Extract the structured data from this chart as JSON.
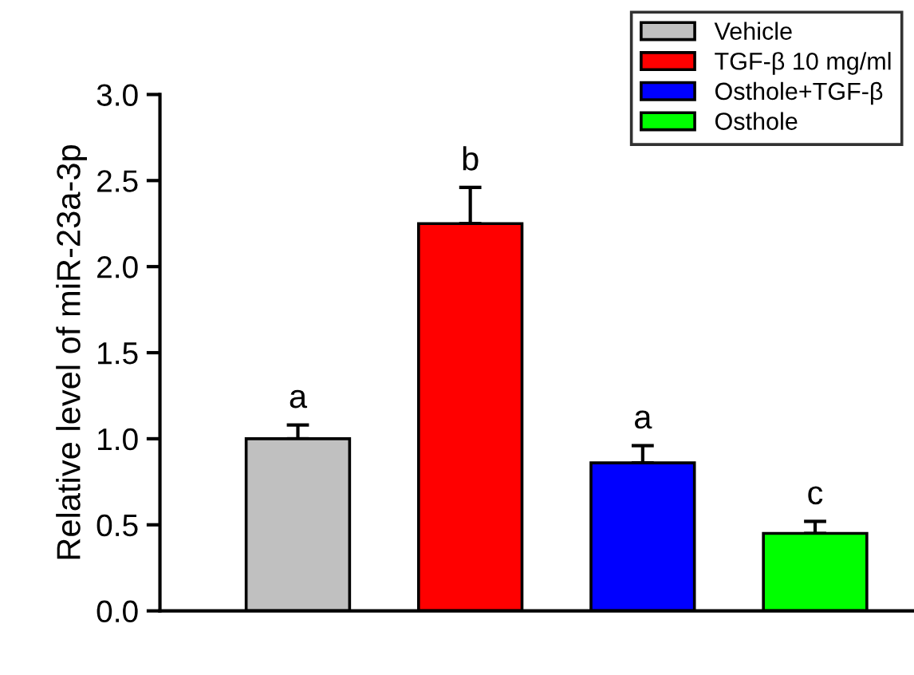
{
  "chart_data": {
    "type": "bar",
    "ylabel": "Relative level of miR-23a-3p",
    "categories": [
      null,
      null,
      null,
      null
    ],
    "series": [
      {
        "name": "Vehicle",
        "color": "#c0c0c0",
        "values": [
          1.0,
          null,
          null,
          null
        ],
        "errors": [
          [
            1.0,
            1.08
          ],
          null,
          null,
          null
        ]
      },
      {
        "name": "TGF-β 10 mg/ml",
        "color": "#ff0000",
        "values": [
          null,
          2.25,
          null,
          null
        ],
        "errors": [
          null,
          [
            2.25,
            2.46
          ],
          null,
          null
        ]
      },
      {
        "name": "Osthole+TGF-β",
        "color": "#0000ff",
        "values": [
          null,
          null,
          0.86,
          null
        ],
        "errors": [
          null,
          null,
          [
            0.86,
            0.96
          ],
          null
        ]
      },
      {
        "name": "Osthole",
        "color": "#00ff00",
        "values": [
          null,
          null,
          null,
          0.45
        ],
        "errors": [
          null,
          null,
          null,
          [
            0.45,
            0.52
          ]
        ]
      }
    ],
    "annotations": [
      "a",
      "b",
      "a",
      "c"
    ],
    "ylim": [
      0,
      3.0
    ],
    "yticks": [
      {
        "value": 0,
        "label": "0.0"
      },
      {
        "value": 0.5,
        "label": "0.5"
      },
      {
        "value": 1.0,
        "label": "1.0"
      },
      {
        "value": 1.5,
        "label": "1.5"
      },
      {
        "value": 2.0,
        "label": "2.0"
      },
      {
        "value": 2.5,
        "label": "2.5"
      },
      {
        "value": 3.0,
        "label": "3.0"
      }
    ],
    "tick_labels": "y",
    "grid": false,
    "legend": "top right"
  }
}
